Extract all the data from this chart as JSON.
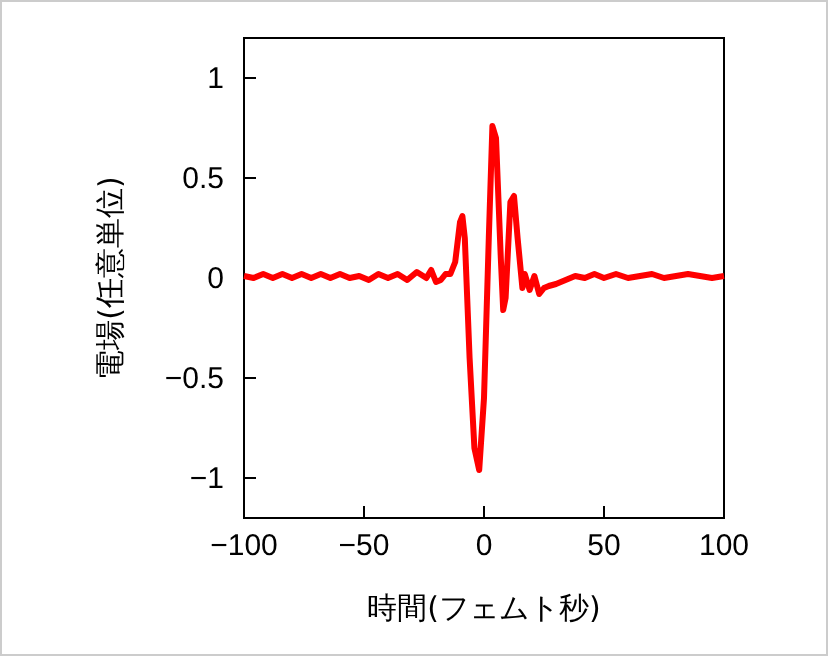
{
  "chart_data": {
    "type": "line",
    "xlabel": "時間(フェムト秒)",
    "ylabel": "電場(任意単位)",
    "xlim": [
      -100,
      100
    ],
    "ylim": [
      -1.2,
      1.2
    ],
    "xticks": [
      -100,
      -50,
      0,
      50,
      100
    ],
    "yticks": [
      -1,
      -0.5,
      0,
      0.5,
      1
    ],
    "series": [
      {
        "color": "#ff0000",
        "x": [
          -100,
          -96,
          -92,
          -88,
          -84,
          -80,
          -76,
          -72,
          -68,
          -64,
          -60,
          -56,
          -52,
          -48,
          -44,
          -40,
          -36,
          -32,
          -28,
          -24,
          -22,
          -20,
          -18,
          -16,
          -14,
          -12,
          -10,
          -9,
          -8,
          -6,
          -4,
          -2,
          0,
          2,
          3.5,
          5,
          7,
          8,
          9,
          11,
          12.5,
          14,
          16,
          17,
          19,
          21,
          23,
          25,
          27,
          30,
          34,
          38,
          42,
          46,
          50,
          55,
          60,
          65,
          70,
          75,
          80,
          85,
          90,
          95,
          100
        ],
        "values": [
          0.01,
          0,
          0.02,
          0,
          0.02,
          0,
          0.02,
          0,
          0.02,
          0,
          0.02,
          0,
          0.01,
          -0.01,
          0.02,
          0,
          0.02,
          -0.01,
          0.03,
          0,
          0.04,
          -0.02,
          -0.01,
          0.02,
          0.02,
          0.08,
          0.28,
          0.31,
          0.2,
          -0.4,
          -0.85,
          -0.96,
          -0.6,
          0.2,
          0.76,
          0.7,
          0.1,
          -0.16,
          -0.1,
          0.38,
          0.41,
          0.2,
          -0.05,
          0.02,
          -0.06,
          0.01,
          -0.08,
          -0.05,
          -0.04,
          -0.03,
          -0.01,
          0.01,
          0,
          0.02,
          0,
          0.02,
          0,
          0.01,
          0.02,
          0,
          0.01,
          0.02,
          0.01,
          0,
          0.01
        ]
      }
    ]
  }
}
